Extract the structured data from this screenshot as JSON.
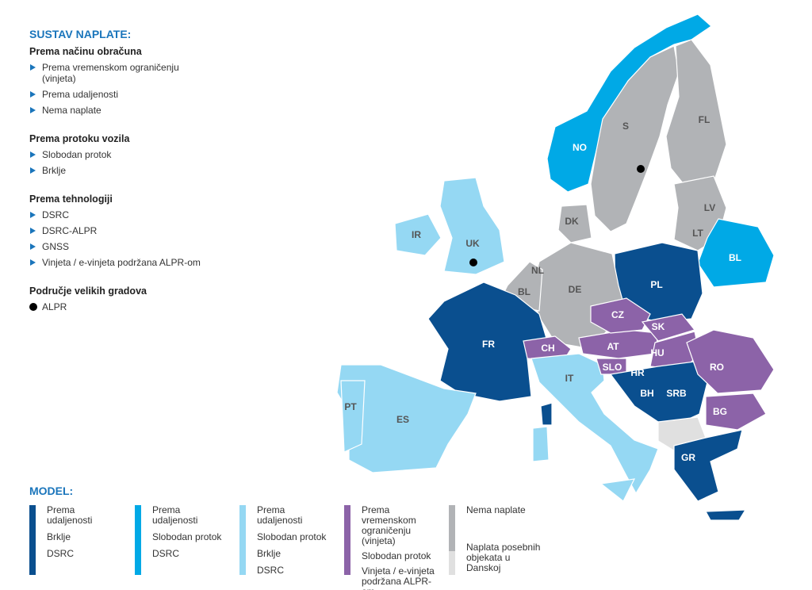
{
  "legend": {
    "title": "SUSTAV NAPLATE:",
    "groups": [
      {
        "heading": "Prema načinu obračuna",
        "items": [
          "Prema vremenskom ograničenju (vinjeta)",
          "Prema udaljenosti",
          "Nema naplate"
        ]
      },
      {
        "heading": "Prema protoku vozila",
        "items": [
          "Slobodan protok",
          "Brklje"
        ]
      },
      {
        "heading": "Prema tehnologiji",
        "items": [
          "DSRC",
          "DSRC-ALPR",
          "GNSS",
          "Vinjeta / e-vinjeta podržana ALPR-om"
        ]
      },
      {
        "heading": "Područje velikih gradova",
        "items": [
          "ALPR"
        ]
      }
    ]
  },
  "model": {
    "title": "MODEL:",
    "columns": [
      [
        "Prema udaljenosti",
        "Brklje",
        "DSRC"
      ],
      [
        "Prema udaljenosti",
        "Slobodan protok",
        "DSRC"
      ],
      [
        "Prema udaljenosti",
        "Slobodan protok",
        "Brklje",
        "DSRC"
      ],
      [
        "Prema vremenskom ograničenju (vinjeta)",
        "Slobodan protok",
        "Vinjeta / e-vinjeta podržana ALPR-om"
      ],
      [
        "Nema naplate",
        "Naplata posebnih objekata u Danskoj"
      ]
    ]
  },
  "map": {
    "countries": [
      "NO",
      "S",
      "FL",
      "LV",
      "LT",
      "BL",
      "DK",
      "UK",
      "IR",
      "NL",
      "BL",
      "DE",
      "PL",
      "FR",
      "CZ",
      "SK",
      "AT",
      "CH",
      "HU",
      "SLO",
      "HR",
      "BH",
      "SRB",
      "RO",
      "IT",
      "BG",
      "PT",
      "ES",
      "GR"
    ]
  }
}
